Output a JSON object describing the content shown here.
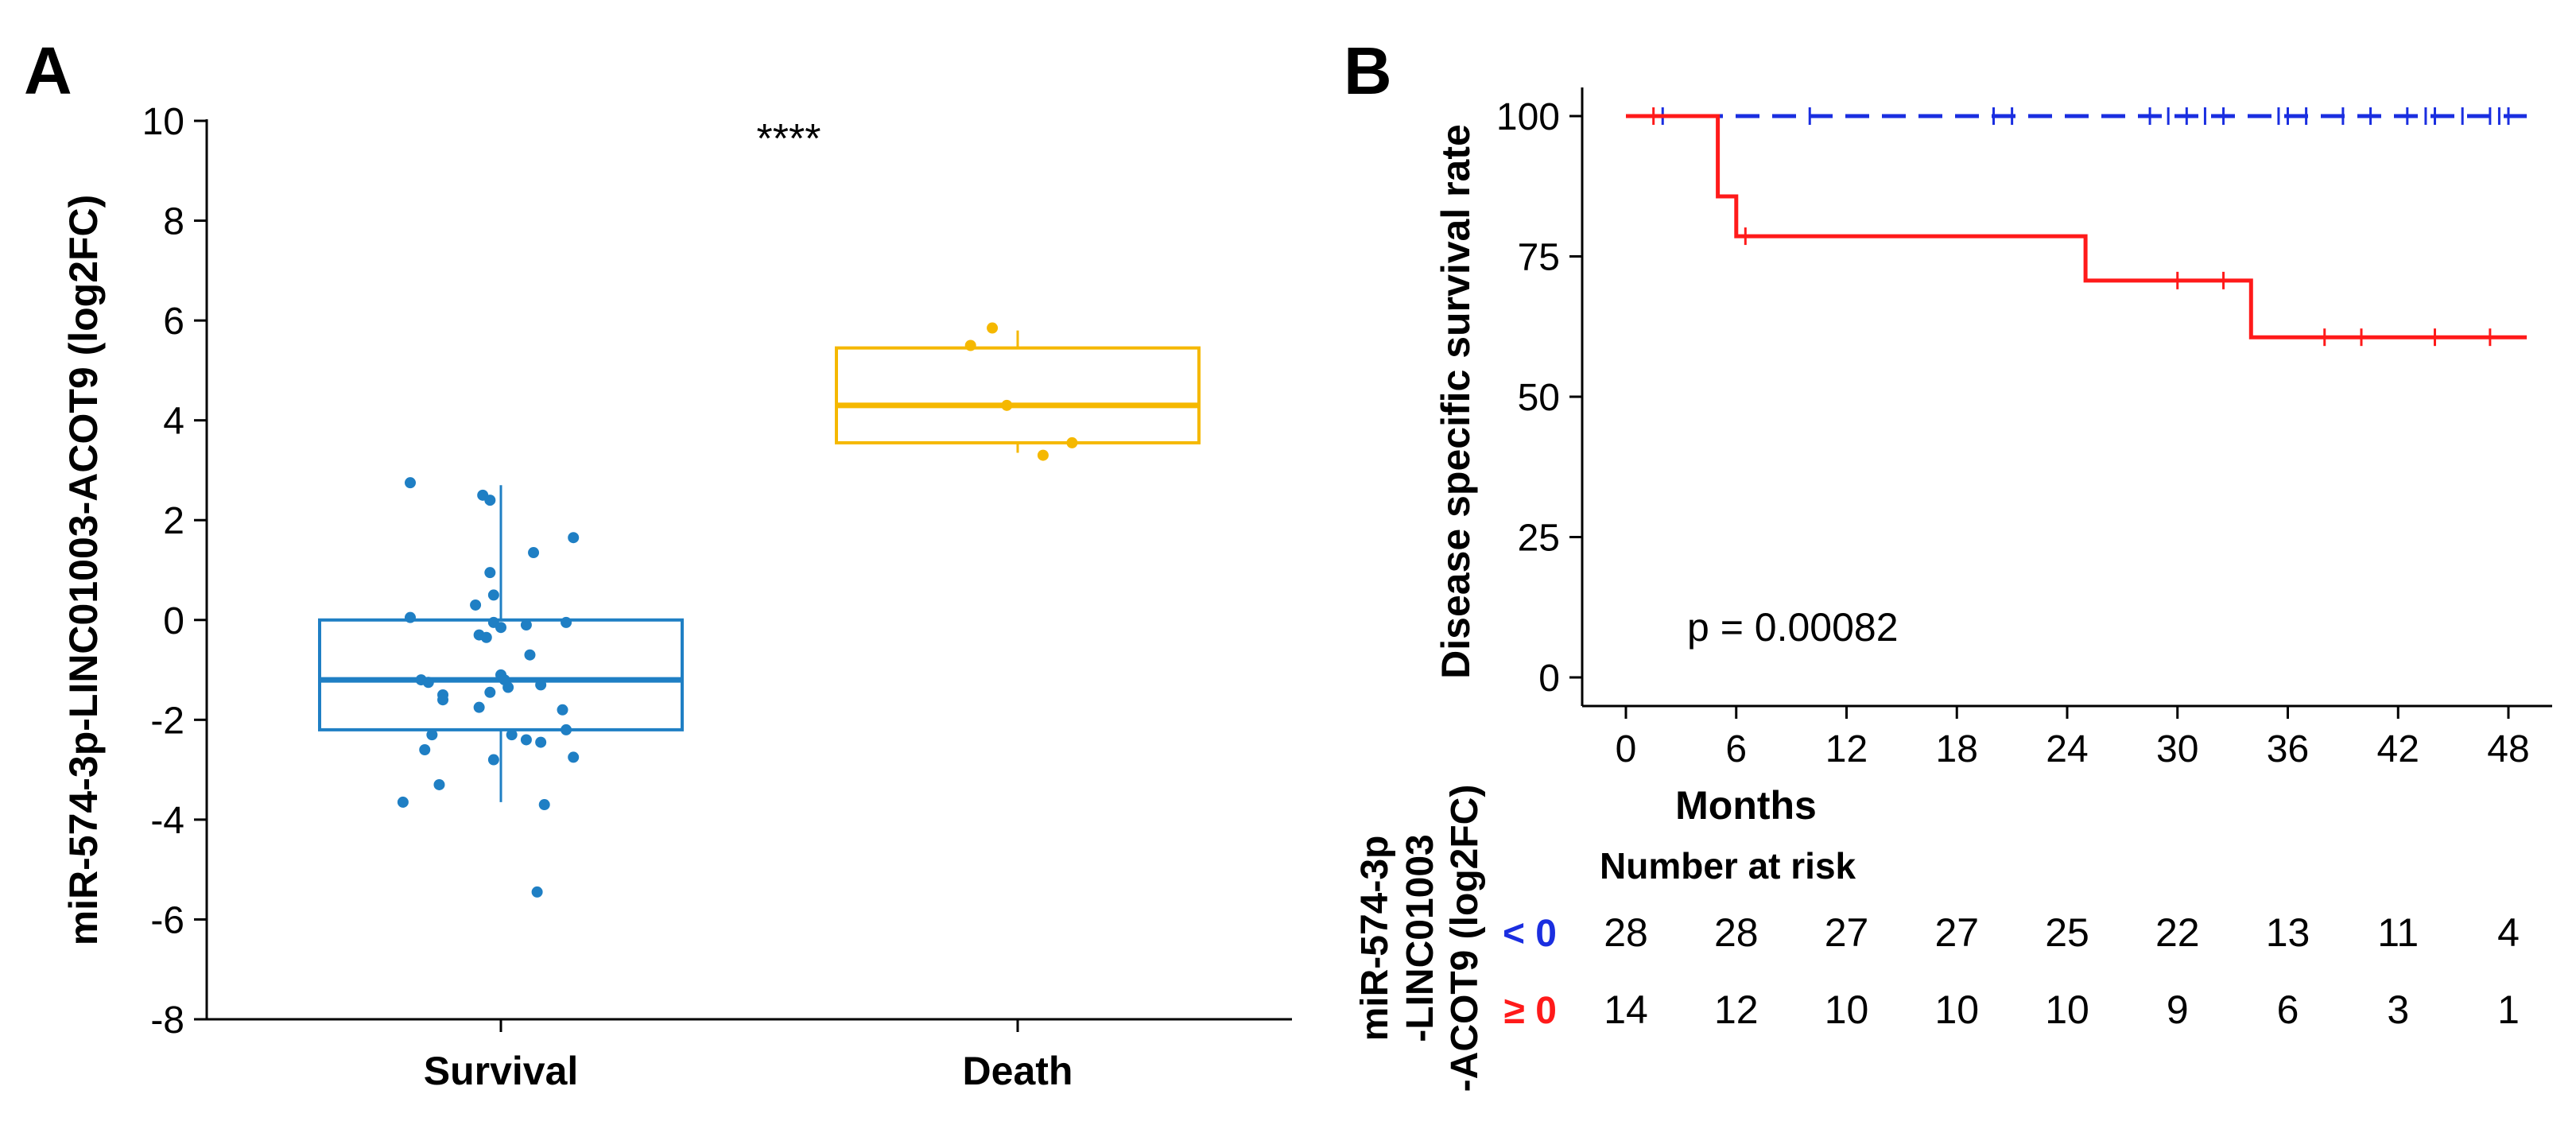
{
  "panel_a_letter": "A",
  "panel_b_letter": "B",
  "chart_data": [
    {
      "type": "box",
      "panel": "A",
      "ylabel": "miR-574-3p-LINC01003-ACOT9 (log2FC)",
      "ylim": [
        -8,
        10
      ],
      "yticks": [
        "10",
        "8",
        "6",
        "4",
        "2",
        "0",
        "-2",
        "-4",
        "-6",
        "-8"
      ],
      "categories": [
        "Survival",
        "Death"
      ],
      "significance": "****",
      "colors": {
        "Survival": "#1f7fc4",
        "Death": "#f5b800"
      },
      "boxes": [
        {
          "name": "Survival",
          "q1": -2.2,
          "median": -1.2,
          "q3": 0.0,
          "whisker_low": -3.65,
          "whisker_high": 2.7
        },
        {
          "name": "Death",
          "q1": 3.55,
          "median": 4.3,
          "q3": 5.45,
          "whisker_low": 3.35,
          "whisker_high": 5.8
        }
      ],
      "points": {
        "Survival": [
          [
            -0.25,
            2.75
          ],
          [
            -0.05,
            2.5
          ],
          [
            -0.03,
            2.4
          ],
          [
            0.09,
            1.35
          ],
          [
            0.2,
            1.65
          ],
          [
            -0.03,
            0.95
          ],
          [
            -0.02,
            0.5
          ],
          [
            -0.07,
            0.3
          ],
          [
            -0.25,
            0.05
          ],
          [
            -0.02,
            -0.05
          ],
          [
            0.07,
            -0.1
          ],
          [
            0.18,
            -0.05
          ],
          [
            -0.06,
            -0.3
          ],
          [
            -0.04,
            -0.35
          ],
          [
            0.0,
            -0.15
          ],
          [
            0.08,
            -0.7
          ],
          [
            0.0,
            -1.1
          ],
          [
            -0.22,
            -1.2
          ],
          [
            -0.2,
            -1.25
          ],
          [
            0.01,
            -1.2
          ],
          [
            0.02,
            -1.35
          ],
          [
            -0.03,
            -1.45
          ],
          [
            -0.16,
            -1.5
          ],
          [
            -0.16,
            -1.6
          ],
          [
            0.11,
            -1.3
          ],
          [
            -0.06,
            -1.75
          ],
          [
            0.17,
            -1.8
          ],
          [
            0.03,
            -2.3
          ],
          [
            -0.19,
            -2.3
          ],
          [
            -0.21,
            -2.6
          ],
          [
            0.07,
            -2.4
          ],
          [
            0.11,
            -2.45
          ],
          [
            -0.02,
            -2.8
          ],
          [
            0.2,
            -2.75
          ],
          [
            -0.17,
            -3.3
          ],
          [
            -0.27,
            -3.65
          ],
          [
            0.12,
            -3.7
          ],
          [
            0.1,
            -5.45
          ],
          [
            0.18,
            -2.2
          ]
        ],
        "Death": [
          [
            -0.13,
            5.5
          ],
          [
            -0.07,
            5.85
          ],
          [
            -0.03,
            4.3
          ],
          [
            0.15,
            3.55
          ],
          [
            0.07,
            3.3
          ]
        ]
      }
    },
    {
      "type": "kaplan-meier",
      "panel": "B",
      "ylabel": "Disease specific survival rate",
      "xlabel": "Months",
      "ylim": [
        0,
        100
      ],
      "xlim": [
        0,
        48
      ],
      "xticks": [
        "0",
        "6",
        "12",
        "18",
        "24",
        "30",
        "36",
        "42",
        "48"
      ],
      "yticks": [
        "100",
        "75",
        "50",
        "25",
        "0"
      ],
      "p_value_text": "p = 0.00082",
      "series": [
        {
          "name": "< 0",
          "color": "#1a2ee0",
          "style": "dashed",
          "steps": [
            [
              0,
              100
            ],
            [
              49,
              100
            ]
          ],
          "censored": [
            [
              2,
              100
            ],
            [
              10,
              100
            ],
            [
              20,
              100
            ],
            [
              21,
              100
            ],
            [
              28.5,
              100
            ],
            [
              29.5,
              100
            ],
            [
              30.5,
              100
            ],
            [
              31.5,
              100
            ],
            [
              32.5,
              100
            ],
            [
              35.5,
              100
            ],
            [
              36,
              100
            ],
            [
              37,
              100
            ],
            [
              39,
              100
            ],
            [
              40.5,
              100
            ],
            [
              42.5,
              100
            ],
            [
              43.5,
              100
            ],
            [
              44,
              100
            ],
            [
              45.5,
              100
            ],
            [
              47,
              100
            ],
            [
              47.5,
              100
            ],
            [
              48,
              100
            ]
          ]
        },
        {
          "name": "≥ 0",
          "color": "#ff1a1a",
          "style": "solid",
          "steps": [
            [
              0,
              100
            ],
            [
              5,
              100
            ],
            [
              5,
              85.7
            ],
            [
              6,
              85.7
            ],
            [
              6,
              78.6
            ],
            [
              25,
              78.6
            ],
            [
              25,
              70.7
            ],
            [
              34,
              70.7
            ],
            [
              34,
              60.6
            ],
            [
              49,
              60.6
            ]
          ],
          "censored": [
            [
              1.5,
              100
            ],
            [
              6.5,
              78.6
            ],
            [
              30,
              70.7
            ],
            [
              32.5,
              70.7
            ],
            [
              38,
              60.6
            ],
            [
              40,
              60.6
            ],
            [
              44,
              60.6
            ],
            [
              47,
              60.6
            ]
          ]
        }
      ],
      "risk_table": {
        "title": "Number at risk",
        "side_label_lines": [
          "miR-574-3p",
          "-LINC01003",
          "-ACOT9 (log2FC)"
        ],
        "times": [
          0,
          6,
          12,
          18,
          24,
          30,
          36,
          42,
          48
        ],
        "rows": [
          {
            "label": "< 0",
            "color": "#1a2ee0",
            "values": [
              "28",
              "28",
              "27",
              "27",
              "25",
              "22",
              "13",
              "11",
              "4"
            ]
          },
          {
            "label": "≥ 0",
            "color": "#ff1a1a",
            "values": [
              "14",
              "12",
              "10",
              "10",
              "10",
              "9",
              "6",
              "3",
              "1"
            ]
          }
        ]
      }
    }
  ]
}
